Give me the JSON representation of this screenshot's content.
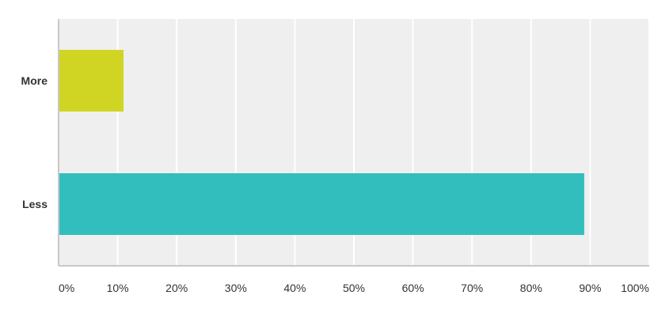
{
  "chart_data": {
    "type": "bar",
    "orientation": "horizontal",
    "categories": [
      "More",
      "Less"
    ],
    "values": [
      11,
      89
    ],
    "colors": [
      "#d0d523",
      "#33bebe"
    ],
    "xlim": [
      0,
      100
    ],
    "x_ticks": [
      0,
      10,
      20,
      30,
      40,
      50,
      60,
      70,
      80,
      90,
      100
    ],
    "x_tick_labels": [
      "0%",
      "10%",
      "20%",
      "30%",
      "40%",
      "50%",
      "60%",
      "70%",
      "80%",
      "90%",
      "100%"
    ],
    "grid": true,
    "plot_background": "#efefef",
    "gridline_color": "#ffffff",
    "axis_color": "#c8c8c8"
  }
}
